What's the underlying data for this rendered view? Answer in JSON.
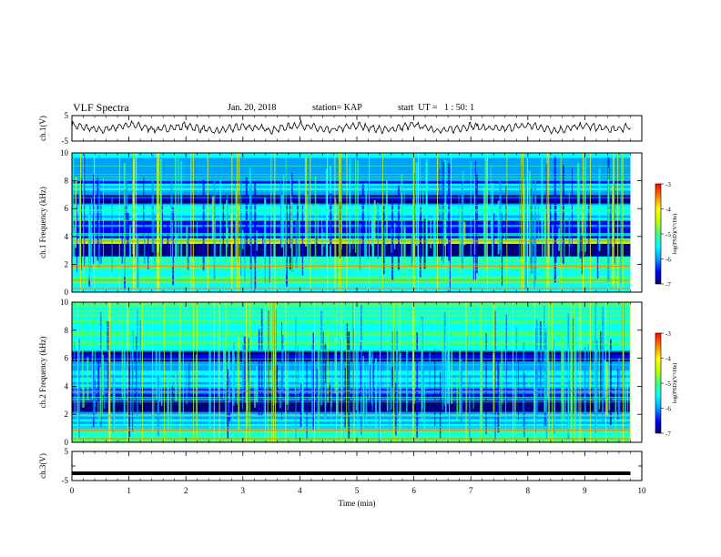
{
  "header": {
    "title": "VLF Spectra",
    "date": "Jan. 20, 2018",
    "station": "station= KAP",
    "start": "start  UT =   1 : 50: 1"
  },
  "colorbar": {
    "ticks": [
      "-3",
      "-4",
      "-5",
      "-6",
      "-7"
    ],
    "label": "log(PSD)(V²/Hz)",
    "colors": [
      "#00007a",
      "#0000ff",
      "#00a0ff",
      "#00ffff",
      "#40ff80",
      "#c0ff00",
      "#ffff00",
      "#ff8000",
      "#ff0000",
      "#ffffff"
    ]
  },
  "chart_data": [
    {
      "type": "line",
      "panel": "ch1-waveform",
      "ylabel": "ch.1(V)",
      "ylim": [
        -5,
        5
      ],
      "yticks": [
        "5",
        "-5"
      ],
      "x": [
        0,
        0.5,
        1,
        1.5,
        2,
        2.5,
        3,
        3.5,
        4,
        4.5,
        5,
        5.5,
        6,
        6.5,
        7,
        7.5,
        8,
        8.5,
        9,
        9.5,
        9.8
      ],
      "values": [
        1.2,
        -0.8,
        1.5,
        -0.5,
        1.0,
        -1.2,
        0.8,
        -0.6,
        1.4,
        -0.9,
        1.1,
        -0.7,
        1.3,
        -1.0,
        0.9,
        -0.4,
        1.2,
        -0.8,
        1.0,
        -0.6,
        0.8
      ]
    },
    {
      "type": "heatmap",
      "panel": "ch1-spectrogram",
      "ylabel": "ch.1 Frequency (kHz)",
      "ylim": [
        0,
        10
      ],
      "yticks": [
        "0",
        "2",
        "4",
        "6",
        "8",
        "10"
      ],
      "xlim": [
        0,
        9.8
      ],
      "zlim": [
        -7,
        -3
      ],
      "bands_khz": [
        {
          "from": 0,
          "to": 1.2,
          "level": -5.0
        },
        {
          "from": 1.2,
          "to": 2.6,
          "level": -5.3
        },
        {
          "from": 2.6,
          "to": 3.5,
          "level": -6.9
        },
        {
          "from": 3.5,
          "to": 3.9,
          "level": -4.6
        },
        {
          "from": 3.9,
          "to": 5.2,
          "level": -6.1
        },
        {
          "from": 5.2,
          "to": 6.4,
          "level": -5.6
        },
        {
          "from": 6.4,
          "to": 7.0,
          "level": -6.6
        },
        {
          "from": 7.0,
          "to": 10,
          "level": -5.7
        }
      ]
    },
    {
      "type": "heatmap",
      "panel": "ch2-spectrogram",
      "ylabel": "ch.2 Frequency (kHz)",
      "ylim": [
        0,
        10
      ],
      "yticks": [
        "0",
        "2",
        "4",
        "6",
        "8",
        "10"
      ],
      "xlim": [
        0,
        9.8
      ],
      "zlim": [
        -7,
        -3
      ],
      "bands_khz": [
        {
          "from": 0,
          "to": 1.0,
          "level": -5.0
        },
        {
          "from": 1.0,
          "to": 2.2,
          "level": -5.4
        },
        {
          "from": 2.2,
          "to": 3.0,
          "level": -6.8
        },
        {
          "from": 3.0,
          "to": 4.0,
          "level": -6.3
        },
        {
          "from": 4.0,
          "to": 5.8,
          "level": -5.6
        },
        {
          "from": 5.8,
          "to": 6.6,
          "level": -6.4
        },
        {
          "from": 6.6,
          "to": 10,
          "level": -4.9
        }
      ]
    },
    {
      "type": "line",
      "panel": "ch3-waveform",
      "ylabel": "ch.3(V)",
      "ylim": [
        -5,
        5
      ],
      "yticks": [
        "5",
        "0",
        "-5"
      ],
      "x": [
        0,
        9.8
      ],
      "values": [
        -2.5,
        -2.5
      ]
    }
  ],
  "xaxis": {
    "label": "Time (min)",
    "xlim": [
      0,
      10
    ],
    "ticks": [
      "0",
      "1",
      "2",
      "3",
      "4",
      "5",
      "6",
      "7",
      "8",
      "9",
      "10"
    ]
  }
}
